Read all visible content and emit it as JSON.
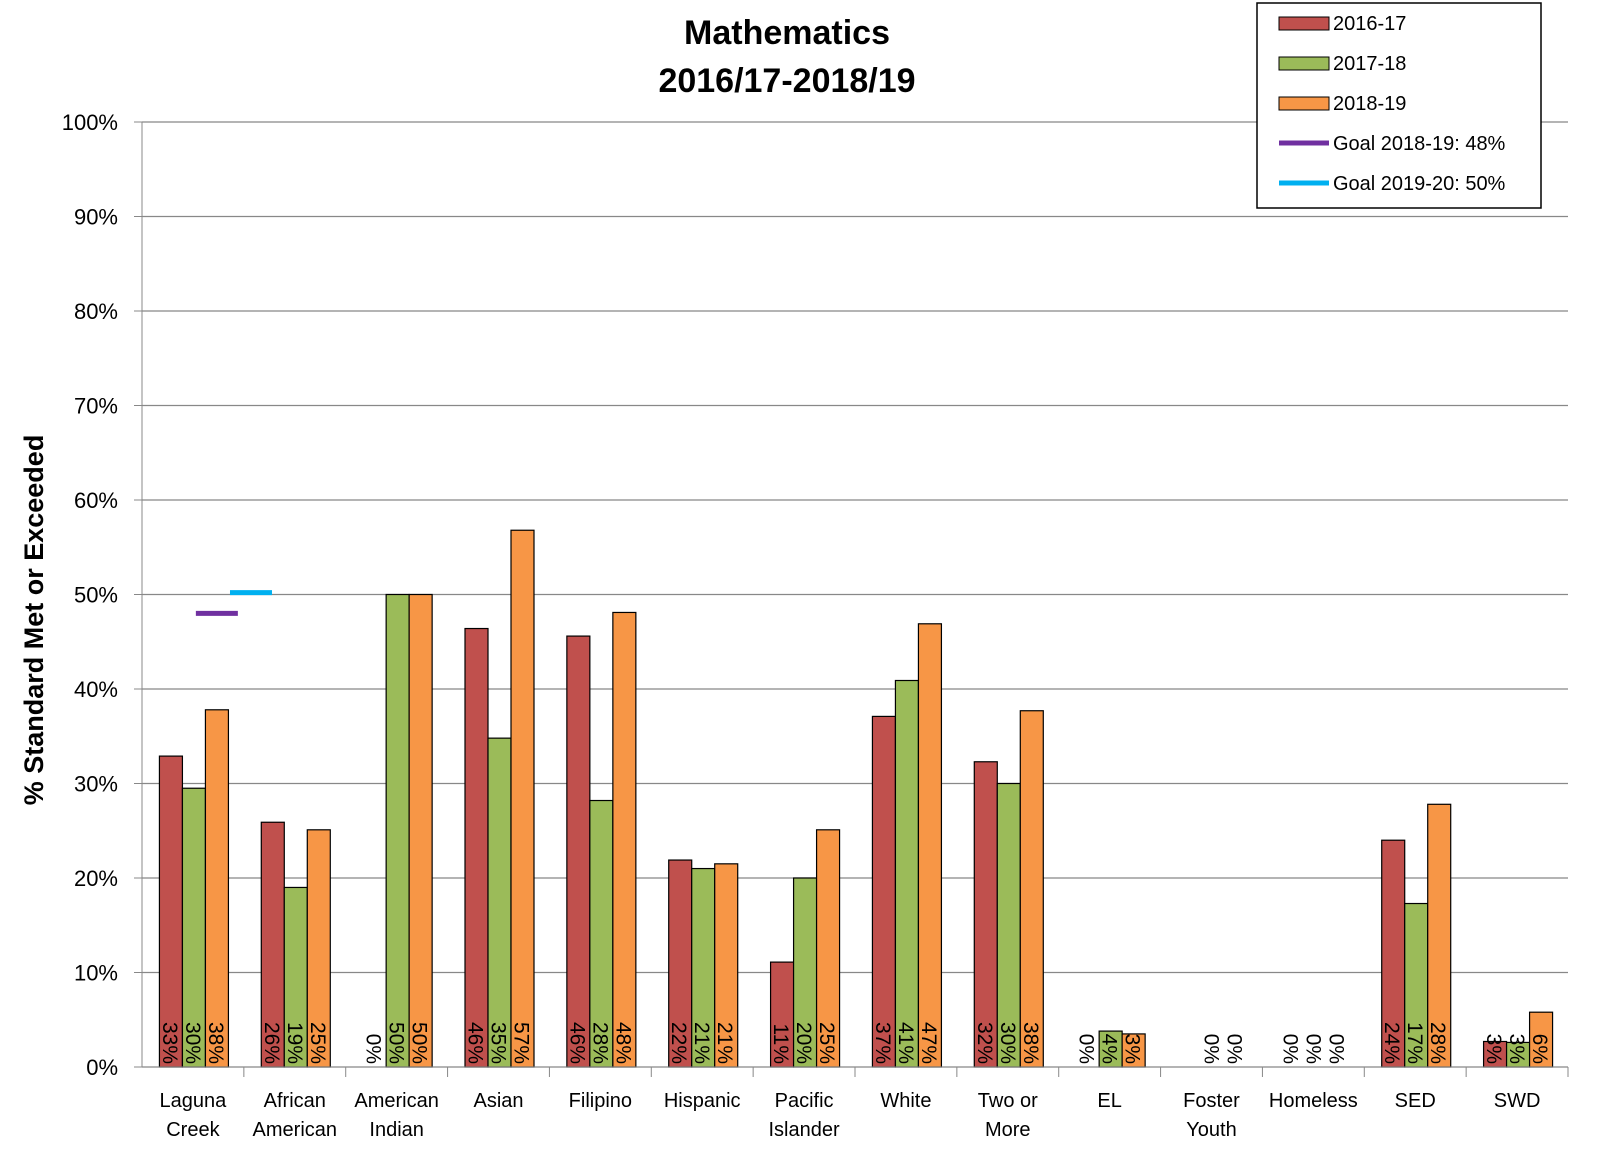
{
  "chart_data": {
    "type": "bar",
    "title": [
      "Mathematics",
      "2016/17-2018/19"
    ],
    "y_label": "% Standard Met or Exceeded",
    "categories": [
      "Laguna\nCreek",
      "African\nAmerican",
      "American\nIndian",
      "Asian",
      "Filipino",
      "Hispanic",
      "Pacific\nIslander",
      "White",
      "Two or\nMore",
      "EL",
      "Foster\nYouth",
      "Homeless",
      "SED",
      "SWD"
    ],
    "series": [
      {
        "name": "2016-17",
        "color": "#c0504d",
        "values": [
          32.9,
          25.9,
          0,
          46.4,
          45.6,
          21.9,
          11.1,
          37.1,
          32.3,
          0,
          null,
          0,
          24,
          2.7
        ],
        "value_labels": [
          "33%",
          "26%",
          "0%",
          "46%",
          "46%",
          "22%",
          "11%",
          "37%",
          "32%",
          "0%",
          null,
          "0%",
          "24%",
          "3%"
        ]
      },
      {
        "name": "2017-18",
        "color": "#9bbb59",
        "values": [
          29.5,
          19,
          50,
          34.8,
          28.2,
          21,
          20,
          40.9,
          30,
          3.8,
          0,
          0,
          17.3,
          2.6
        ],
        "value_labels": [
          "30%",
          "19%",
          "50%",
          "35%",
          "28%",
          "21%",
          "20%",
          "41%",
          "30%",
          "4%",
          "0%",
          "0%",
          "17%",
          "3%"
        ]
      },
      {
        "name": "2018-19",
        "color": "#f79646",
        "values": [
          37.8,
          25.1,
          50,
          56.8,
          48.1,
          21.5,
          25.1,
          46.9,
          37.7,
          3.5,
          0,
          0,
          27.8,
          5.8
        ],
        "value_labels": [
          "38%",
          "25%",
          "50%",
          "57%",
          "48%",
          "21%",
          "25%",
          "47%",
          "38%",
          "3%",
          "0%",
          "0%",
          "28%",
          "6%"
        ]
      }
    ],
    "goals": [
      {
        "name": "Goal 2018-19: 48%",
        "color": "#7030a0",
        "value": 48
      },
      {
        "name": "Goal 2019-20: 50%",
        "color": "#00b0f0",
        "value": 50.2
      }
    ],
    "ylim": [
      0,
      100
    ],
    "yticks": [
      {
        "value": 0,
        "label": "0%"
      },
      {
        "value": 10,
        "label": "10%"
      },
      {
        "value": 20,
        "label": "20%"
      },
      {
        "value": 30,
        "label": "30%"
      },
      {
        "value": 40,
        "label": "40%"
      },
      {
        "value": 50,
        "label": "50%"
      },
      {
        "value": 60,
        "label": "60%"
      },
      {
        "value": 70,
        "label": "70%"
      },
      {
        "value": 80,
        "label": "80%"
      },
      {
        "value": 90,
        "label": "90%"
      },
      {
        "value": 100,
        "label": "100%"
      }
    ],
    "grid": true,
    "legend": "top-right"
  }
}
